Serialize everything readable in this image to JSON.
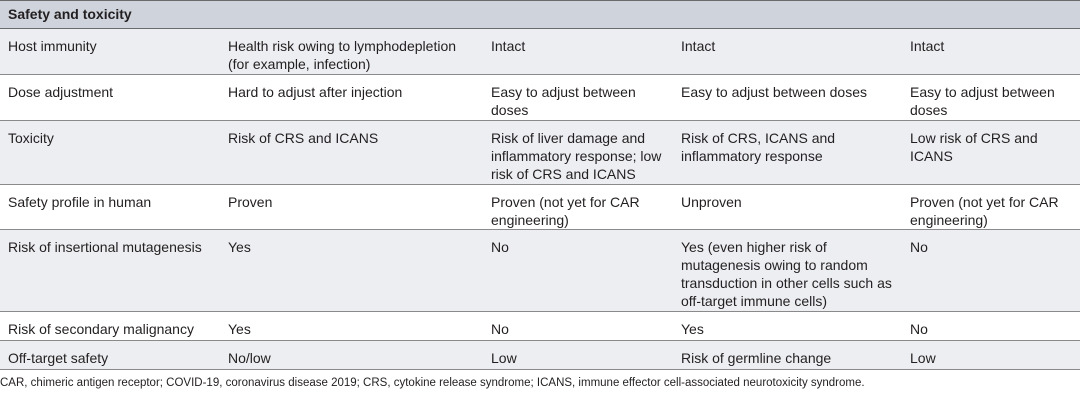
{
  "section_title": "Safety and toxicity",
  "rows": [
    {
      "cells": [
        "Host immunity",
        "Health risk owing to lymphodepletion (for example, infection)",
        "Intact",
        "Intact",
        "Intact"
      ]
    },
    {
      "cells": [
        "Dose adjustment",
        "Hard to adjust after injection",
        "Easy to adjust between doses",
        "Easy to adjust between doses",
        "Easy to adjust between doses"
      ]
    },
    {
      "cells": [
        "Toxicity",
        "Risk of CRS and ICANS",
        "Risk of liver damage and inflammatory response; low risk of CRS and ICANS",
        "Risk of CRS, ICANS and inflammatory response",
        "Low risk of CRS and ICANS"
      ]
    },
    {
      "cells": [
        "Safety profile in human",
        "Proven",
        "Proven (not yet for CAR engineering)",
        "Unproven",
        "Proven (not yet for CAR engineering)"
      ]
    },
    {
      "cells": [
        "Risk of insertional mutagenesis",
        "Yes",
        "No",
        "Yes (even higher risk of mutagenesis owing to random transduction in other cells such as off-target immune cells)",
        "No"
      ]
    },
    {
      "cells": [
        "Risk of secondary malignancy",
        "Yes",
        "No",
        "Yes",
        "No"
      ]
    },
    {
      "cells": [
        "Off-target safety",
        "No/low",
        "Low",
        "Risk of germline change",
        "Low"
      ]
    }
  ],
  "footnote": "CAR, chimeric antigen receptor; COVID-19, coronavirus disease 2019; CRS, cytokine release syndrome; ICANS, immune effector cell-associated neurotoxicity syndrome."
}
